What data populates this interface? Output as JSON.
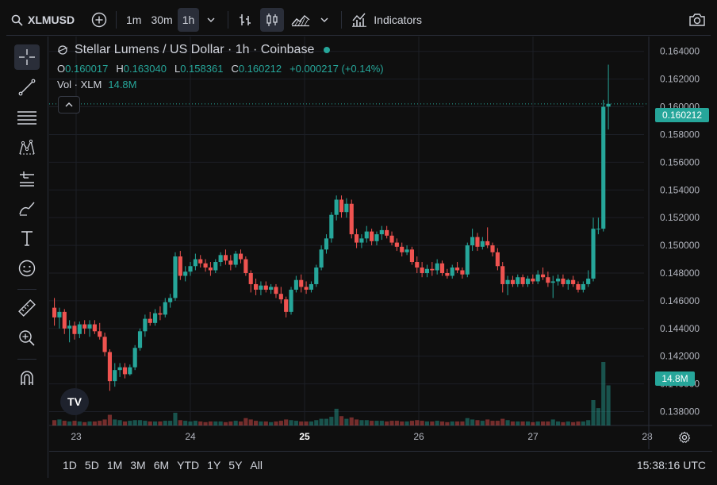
{
  "toolbar": {
    "symbol": "XLMUSD",
    "intervals": [
      "1m",
      "30m",
      "1h"
    ],
    "active_interval": "1h",
    "indicators_label": "Indicators"
  },
  "legend": {
    "title": "Stellar Lumens / US Dollar · 1h · Coinbase",
    "o_label": "O",
    "o_value": "0.160017",
    "h_label": "H",
    "h_value": "0.163040",
    "l_label": "L",
    "l_value": "0.158361",
    "c_label": "C",
    "c_value": "0.160212",
    "change": "+0.000217 (+0.14%)",
    "vol_label": "Vol · XLM",
    "vol_value": "14.8M"
  },
  "last_price_tag": "0.160212",
  "volume_tag": "14.8M",
  "bottom": {
    "ranges": [
      "1D",
      "5D",
      "1M",
      "3M",
      "6M",
      "YTD",
      "1Y",
      "5Y",
      "All"
    ],
    "clock": "15:38:16 UTC"
  },
  "colors": {
    "up": "#26a69a",
    "down": "#ef5350",
    "bg": "#0f0f0f",
    "grid": "#1c1f26"
  },
  "chart_data": {
    "type": "candlestick",
    "y_ticks": [
      "0.164000",
      "0.162000",
      "0.160000",
      "0.158000",
      "0.156000",
      "0.154000",
      "0.152000",
      "0.150000",
      "0.148000",
      "0.146000",
      "0.144000",
      "0.142000",
      "0.140000",
      "0.138000"
    ],
    "ylim": [
      0.137,
      0.1645
    ],
    "x_ticks": [
      "23",
      "24",
      "25",
      "26",
      "27",
      "28"
    ],
    "last_price": 0.160212,
    "candles_ohlc": [
      [
        0.1455,
        0.1462,
        0.1442,
        0.1448
      ],
      [
        0.1448,
        0.1455,
        0.144,
        0.1452
      ],
      [
        0.1452,
        0.1454,
        0.1436,
        0.144
      ],
      [
        0.144,
        0.1446,
        0.143,
        0.1442
      ],
      [
        0.1442,
        0.1445,
        0.1432,
        0.1436
      ],
      [
        0.1436,
        0.1445,
        0.1433,
        0.1443
      ],
      [
        0.1443,
        0.1446,
        0.1436,
        0.144
      ],
      [
        0.144,
        0.1446,
        0.1434,
        0.1443
      ],
      [
        0.1443,
        0.1446,
        0.1436,
        0.1438
      ],
      [
        0.1438,
        0.1444,
        0.1432,
        0.1434
      ],
      [
        0.1434,
        0.1437,
        0.142,
        0.1423
      ],
      [
        0.1423,
        0.1425,
        0.1395,
        0.1402
      ],
      [
        0.1402,
        0.1415,
        0.1398,
        0.141
      ],
      [
        0.141,
        0.1415,
        0.1405,
        0.1412
      ],
      [
        0.1412,
        0.1415,
        0.1404,
        0.1407
      ],
      [
        0.1407,
        0.1414,
        0.1406,
        0.1412
      ],
      [
        0.1412,
        0.1428,
        0.141,
        0.1426
      ],
      [
        0.1426,
        0.144,
        0.1424,
        0.1438
      ],
      [
        0.1438,
        0.145,
        0.1434,
        0.1447
      ],
      [
        0.1447,
        0.1452,
        0.1442,
        0.1444
      ],
      [
        0.1444,
        0.1454,
        0.1442,
        0.1451
      ],
      [
        0.1451,
        0.1456,
        0.1446,
        0.145
      ],
      [
        0.145,
        0.1462,
        0.1448,
        0.1459
      ],
      [
        0.1459,
        0.1465,
        0.1455,
        0.1462
      ],
      [
        0.1462,
        0.1495,
        0.146,
        0.1492
      ],
      [
        0.1492,
        0.1496,
        0.1475,
        0.1478
      ],
      [
        0.1478,
        0.1485,
        0.1474,
        0.1481
      ],
      [
        0.1481,
        0.1488,
        0.1478,
        0.1485
      ],
      [
        0.1485,
        0.1494,
        0.1482,
        0.149
      ],
      [
        0.149,
        0.1493,
        0.1484,
        0.1487
      ],
      [
        0.1487,
        0.149,
        0.1481,
        0.1484
      ],
      [
        0.1484,
        0.1488,
        0.1478,
        0.1482
      ],
      [
        0.1482,
        0.149,
        0.148,
        0.1488
      ],
      [
        0.1488,
        0.1495,
        0.1485,
        0.1493
      ],
      [
        0.1493,
        0.1497,
        0.1486,
        0.1489
      ],
      [
        0.1489,
        0.1493,
        0.1482,
        0.1486
      ],
      [
        0.1486,
        0.1496,
        0.1484,
        0.1494
      ],
      [
        0.1494,
        0.1497,
        0.1487,
        0.149
      ],
      [
        0.149,
        0.1492,
        0.1478,
        0.148
      ],
      [
        0.148,
        0.1482,
        0.1466,
        0.1472
      ],
      [
        0.1472,
        0.1476,
        0.1464,
        0.1468
      ],
      [
        0.1468,
        0.1474,
        0.1464,
        0.1471
      ],
      [
        0.1471,
        0.1474,
        0.1466,
        0.1468
      ],
      [
        0.1468,
        0.1472,
        0.1465,
        0.147
      ],
      [
        0.147,
        0.1472,
        0.1462,
        0.1465
      ],
      [
        0.1465,
        0.147,
        0.1458,
        0.1461
      ],
      [
        0.1461,
        0.1463,
        0.1448,
        0.1452
      ],
      [
        0.1452,
        0.147,
        0.145,
        0.1468
      ],
      [
        0.1468,
        0.1478,
        0.1466,
        0.1475
      ],
      [
        0.1475,
        0.1479,
        0.1466,
        0.147
      ],
      [
        0.147,
        0.1474,
        0.1465,
        0.1468
      ],
      [
        0.1468,
        0.1474,
        0.1466,
        0.1472
      ],
      [
        0.1472,
        0.1486,
        0.147,
        0.1484
      ],
      [
        0.1484,
        0.15,
        0.1482,
        0.1497
      ],
      [
        0.1497,
        0.1508,
        0.1494,
        0.1505
      ],
      [
        0.1505,
        0.1524,
        0.1502,
        0.1522
      ],
      [
        0.1522,
        0.1536,
        0.1518,
        0.1533
      ],
      [
        0.1533,
        0.1536,
        0.152,
        0.1524
      ],
      [
        0.1524,
        0.1534,
        0.152,
        0.153
      ],
      [
        0.153,
        0.1533,
        0.1505,
        0.1508
      ],
      [
        0.1508,
        0.1512,
        0.1498,
        0.1502
      ],
      [
        0.1502,
        0.1508,
        0.1498,
        0.1505
      ],
      [
        0.1505,
        0.1514,
        0.1502,
        0.151
      ],
      [
        0.151,
        0.1512,
        0.15,
        0.1503
      ],
      [
        0.1503,
        0.151,
        0.15,
        0.1508
      ],
      [
        0.1508,
        0.1514,
        0.1504,
        0.1511
      ],
      [
        0.1511,
        0.1514,
        0.1505,
        0.1507
      ],
      [
        0.1507,
        0.151,
        0.15,
        0.1502
      ],
      [
        0.1502,
        0.1505,
        0.1496,
        0.1499
      ],
      [
        0.1499,
        0.1502,
        0.1492,
        0.1495
      ],
      [
        0.1495,
        0.15,
        0.1493,
        0.1497
      ],
      [
        0.1497,
        0.1499,
        0.1486,
        0.1488
      ],
      [
        0.1488,
        0.1492,
        0.148,
        0.1484
      ],
      [
        0.1484,
        0.1488,
        0.1477,
        0.148
      ],
      [
        0.148,
        0.1486,
        0.1477,
        0.1483
      ],
      [
        0.1483,
        0.1488,
        0.1478,
        0.1482
      ],
      [
        0.1482,
        0.149,
        0.1479,
        0.1487
      ],
      [
        0.1487,
        0.1489,
        0.1478,
        0.148
      ],
      [
        0.148,
        0.1483,
        0.1476,
        0.1478
      ],
      [
        0.1478,
        0.1486,
        0.1476,
        0.1484
      ],
      [
        0.1484,
        0.1488,
        0.148,
        0.1482
      ],
      [
        0.1482,
        0.1484,
        0.1476,
        0.1479
      ],
      [
        0.1479,
        0.1502,
        0.1477,
        0.15
      ],
      [
        0.15,
        0.1512,
        0.1496,
        0.1506
      ],
      [
        0.1506,
        0.1509,
        0.1496,
        0.1499
      ],
      [
        0.1499,
        0.1506,
        0.1497,
        0.1503
      ],
      [
        0.1503,
        0.1513,
        0.1498,
        0.15
      ],
      [
        0.15,
        0.1502,
        0.1492,
        0.1495
      ],
      [
        0.1495,
        0.1498,
        0.1482,
        0.1485
      ],
      [
        0.1485,
        0.1488,
        0.1466,
        0.1472
      ],
      [
        0.1472,
        0.1478,
        0.1464,
        0.1475
      ],
      [
        0.1475,
        0.1478,
        0.147,
        0.1472
      ],
      [
        0.1472,
        0.1479,
        0.147,
        0.1477
      ],
      [
        0.1477,
        0.1479,
        0.147,
        0.1472
      ],
      [
        0.1472,
        0.1478,
        0.147,
        0.1476
      ],
      [
        0.1476,
        0.1479,
        0.1472,
        0.1474
      ],
      [
        0.1474,
        0.1482,
        0.1472,
        0.1479
      ],
      [
        0.1479,
        0.1484,
        0.1475,
        0.1477
      ],
      [
        0.1477,
        0.1481,
        0.147,
        0.1473
      ],
      [
        0.1473,
        0.1478,
        0.1462,
        0.1474
      ],
      [
        0.1474,
        0.1479,
        0.1471,
        0.1476
      ],
      [
        0.1476,
        0.1479,
        0.147,
        0.1472
      ],
      [
        0.1472,
        0.1476,
        0.1468,
        0.1475
      ],
      [
        0.1475,
        0.1478,
        0.147,
        0.1472
      ],
      [
        0.1472,
        0.1474,
        0.1466,
        0.1468
      ],
      [
        0.1468,
        0.1474,
        0.1466,
        0.1472
      ],
      [
        0.1472,
        0.1482,
        0.147,
        0.1476
      ],
      [
        0.1476,
        0.152,
        0.1474,
        0.1512
      ],
      [
        0.1512,
        0.152,
        0.1508,
        0.1512
      ],
      [
        0.1512,
        0.1605,
        0.151,
        0.16
      ],
      [
        0.16002,
        0.16304,
        0.15836,
        0.160212
      ]
    ],
    "volumes": [
      0.8,
      0.9,
      0.7,
      0.6,
      0.7,
      0.6,
      0.5,
      0.6,
      0.6,
      0.7,
      0.9,
      1.6,
      0.9,
      0.8,
      0.6,
      0.7,
      0.8,
      0.8,
      0.7,
      0.6,
      0.6,
      0.6,
      0.7,
      0.7,
      1.9,
      0.8,
      0.7,
      0.6,
      0.7,
      0.6,
      0.5,
      0.6,
      0.6,
      0.6,
      0.5,
      0.6,
      0.7,
      0.6,
      1.1,
      0.9,
      0.7,
      0.6,
      0.6,
      0.5,
      0.6,
      0.7,
      0.9,
      0.8,
      0.7,
      0.6,
      0.6,
      0.6,
      0.8,
      1.0,
      1.0,
      1.3,
      2.5,
      1.4,
      1.0,
      1.2,
      0.9,
      0.8,
      0.8,
      0.7,
      0.7,
      0.7,
      0.6,
      0.7,
      0.7,
      0.6,
      0.6,
      0.7,
      0.8,
      0.7,
      0.6,
      0.6,
      0.7,
      0.6,
      0.5,
      0.6,
      0.6,
      0.6,
      1.1,
      0.9,
      0.8,
      0.7,
      0.9,
      0.7,
      0.7,
      1.0,
      0.8,
      0.6,
      0.6,
      0.6,
      0.6,
      0.5,
      0.6,
      0.6,
      0.6,
      0.9,
      0.6,
      0.5,
      0.6,
      0.5,
      0.6,
      0.6,
      0.8,
      3.8,
      2.6,
      9.5,
      6.0
    ]
  }
}
